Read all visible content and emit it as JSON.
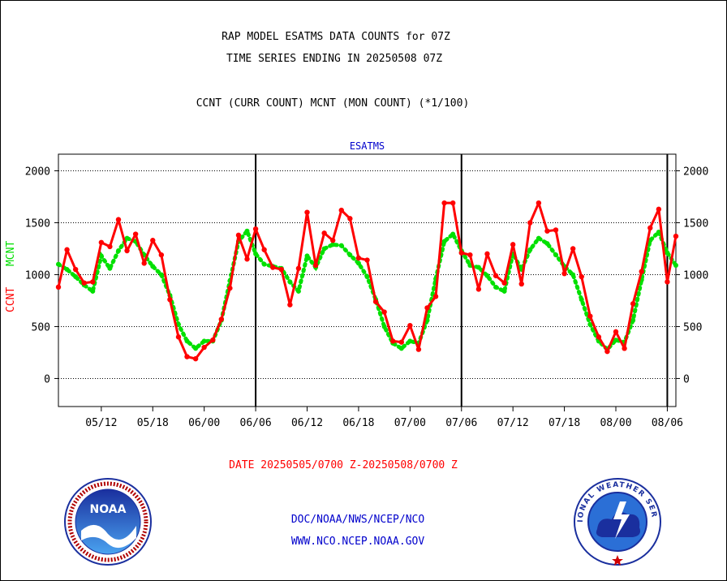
{
  "header": {
    "title_line1": "RAP MODEL ESATMS DATA COUNTS for 07Z",
    "title_line2": "TIME SERIES ENDING IN 20250508 07Z",
    "subtitle": "CCNT (CURR COUNT) MCNT (MON COUNT) (*1/100)"
  },
  "footer": {
    "date_range": "DATE 20250505/0700 Z-20250508/0700 Z",
    "org": "DOC/NOAA/NWS/NCEP/NCO",
    "url": "WWW.NCO.NCEP.NOAA.GOV"
  },
  "logos": {
    "left": "NOAA",
    "right": "NATIONAL WEATHER SERVICE"
  },
  "colors": {
    "ccnt": "#ff0000",
    "mcnt": "#00e000",
    "text_blue": "#0000cc"
  },
  "chart_data": {
    "type": "line",
    "title": "ESATMS",
    "ylabel_ccnt": "CCNT",
    "ylabel_mcnt": "MCNT",
    "ylim": [
      -270,
      2160
    ],
    "yticks": [
      "2000",
      "1500",
      "1000",
      "500",
      "0"
    ],
    "ytick_values": [
      2000,
      1500,
      1000,
      500,
      0
    ],
    "grid": true,
    "xticks": [
      "05/12",
      "05/18",
      "06/00",
      "06/06",
      "06/12",
      "06/18",
      "07/00",
      "07/06",
      "07/12",
      "07/18",
      "08/00",
      "08/06"
    ],
    "xtick_hours": [
      5,
      11,
      17,
      23,
      29,
      35,
      41,
      47,
      53,
      59,
      65,
      71
    ],
    "xlim": [
      0,
      72
    ],
    "day_boundaries": [
      23,
      47,
      71
    ],
    "series": [
      {
        "name": "CCNT",
        "color": "#ff0000",
        "values": [
          880,
          1240,
          1050,
          920,
          930,
          1310,
          1270,
          1530,
          1230,
          1390,
          1110,
          1330,
          1190,
          760,
          400,
          210,
          190,
          300,
          370,
          570,
          870,
          1380,
          1150,
          1440,
          1240,
          1070,
          1050,
          710,
          1060,
          1600,
          1090,
          1400,
          1330,
          1620,
          1540,
          1160,
          1140,
          740,
          640,
          360,
          350,
          510,
          280,
          680,
          790,
          1690,
          1690,
          1210,
          1190,
          860,
          1200,
          990,
          920,
          1290,
          910,
          1500,
          1690,
          1420,
          1430,
          1010,
          1250,
          980,
          600,
          400,
          260,
          450,
          290,
          720,
          1030,
          1450,
          1630,
          930,
          1370
        ]
      },
      {
        "name": "MCNT",
        "color": "#00e000",
        "values": [
          1100,
          1050,
          980,
          900,
          840,
          1180,
          1060,
          1230,
          1350,
          1320,
          1190,
          1080,
          1000,
          800,
          520,
          360,
          290,
          360,
          360,
          560,
          940,
          1320,
          1420,
          1200,
          1100,
          1080,
          1060,
          930,
          840,
          1180,
          1070,
          1250,
          1290,
          1280,
          1190,
          1110,
          980,
          760,
          500,
          340,
          290,
          360,
          340,
          560,
          960,
          1320,
          1390,
          1230,
          1090,
          1070,
          990,
          880,
          840,
          1200,
          1050,
          1240,
          1350,
          1300,
          1190,
          1080,
          1000,
          760,
          520,
          360,
          280,
          370,
          350,
          560,
          950,
          1330,
          1410,
          1210,
          1090
        ]
      }
    ]
  }
}
